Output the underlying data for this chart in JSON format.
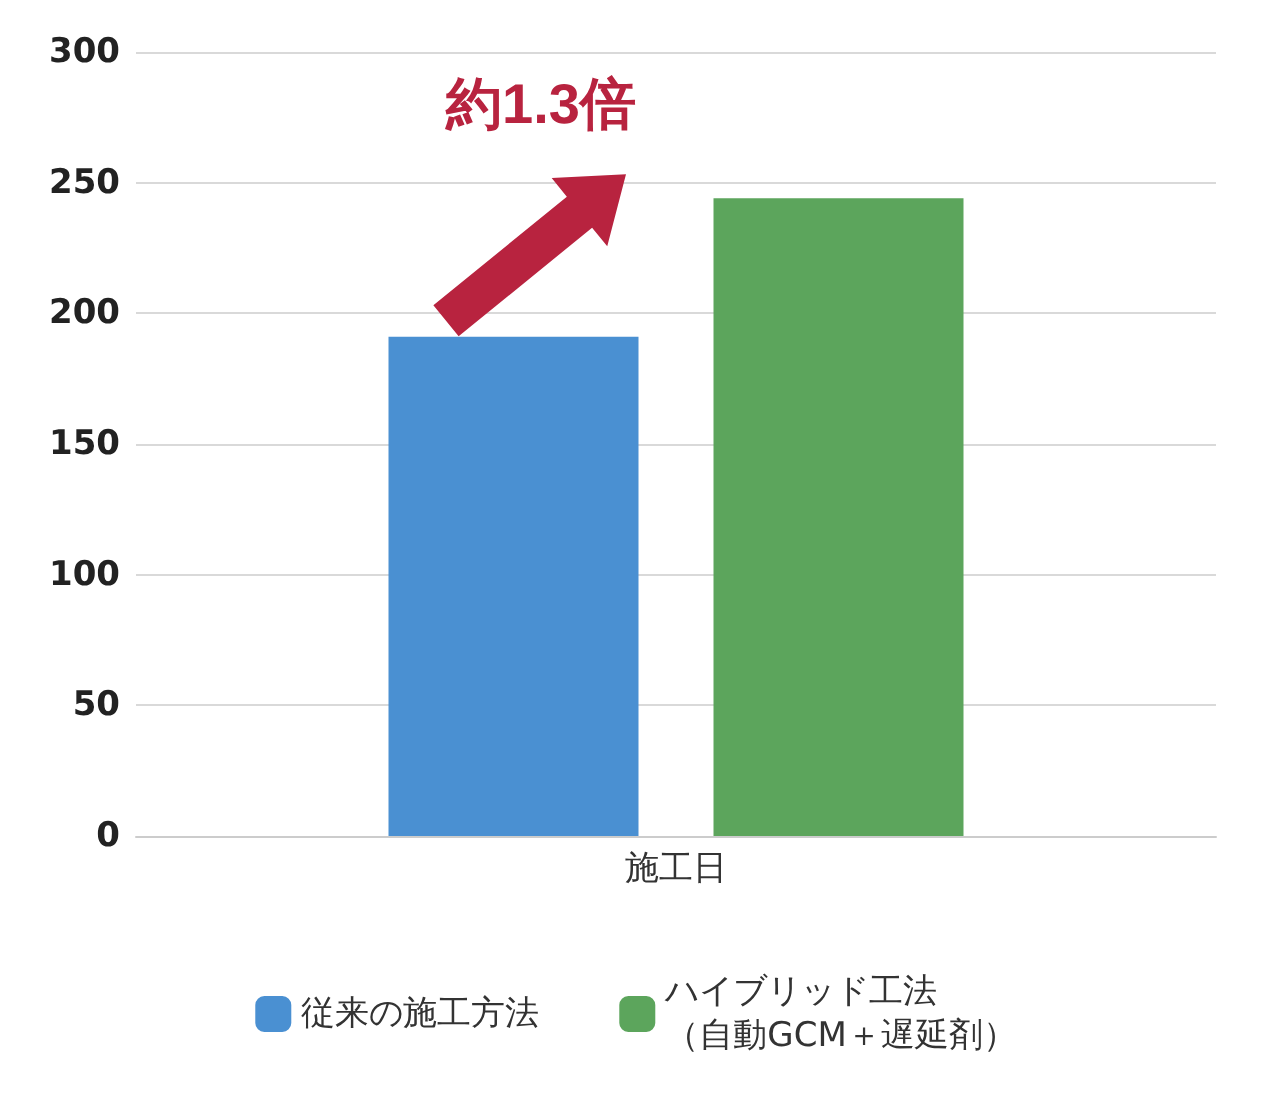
{
  "chart_data": {
    "type": "bar",
    "categories": [
      "施工日"
    ],
    "series": [
      {
        "name": "従来の施工方法",
        "color": "#4a90d2",
        "values": [
          191
        ]
      },
      {
        "name": "ハイブリッド工法（自動GCM＋遅延剤）",
        "color": "#5ca55c",
        "values": [
          244
        ]
      }
    ],
    "ylim": [
      0,
      300
    ],
    "yticks": [
      0,
      50,
      100,
      150,
      200,
      250,
      300
    ],
    "grid": "y",
    "legend": "bottom",
    "annotations": [
      "約1.3倍"
    ]
  }
}
